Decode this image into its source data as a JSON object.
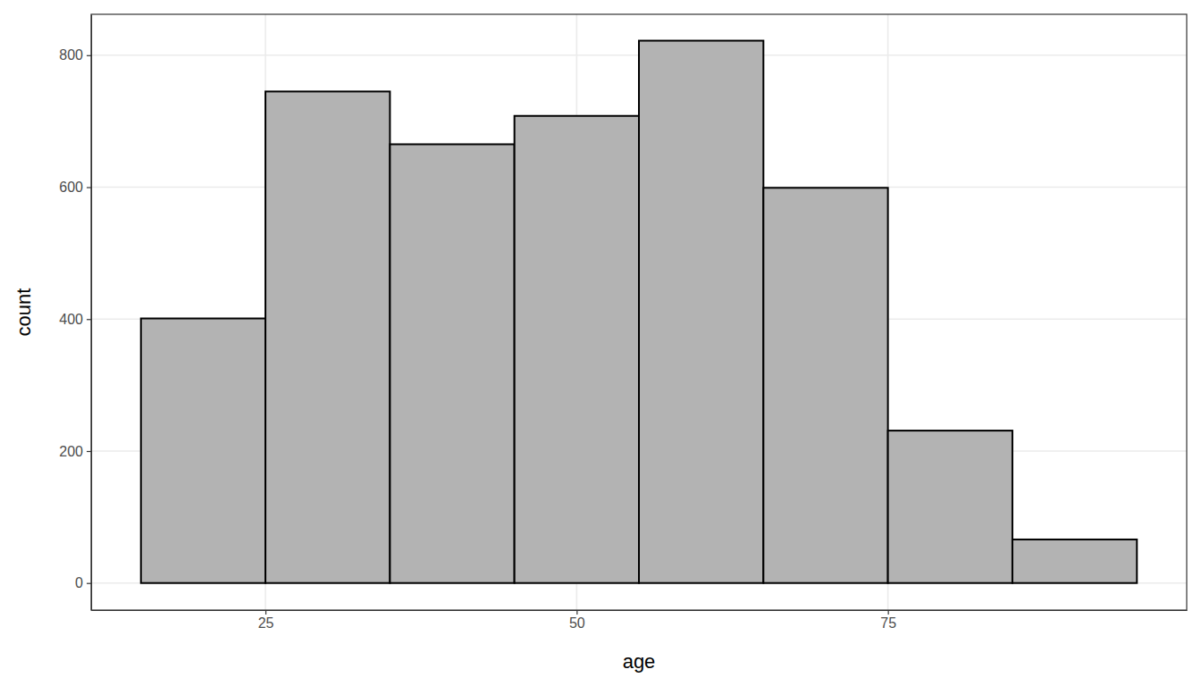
{
  "chart_data": {
    "type": "histogram",
    "x_label": "age",
    "y_label": "count",
    "bins": [
      15,
      25,
      35,
      45,
      55,
      65,
      75,
      85,
      95
    ],
    "values": [
      401,
      745,
      665,
      708,
      822,
      599,
      231,
      66
    ],
    "color": "#b3b3b3",
    "xlim": [
      11,
      99
    ],
    "ylim": [
      -41,
      862
    ],
    "xticks": [
      25,
      50,
      75
    ],
    "yticks": [
      0,
      200,
      400,
      600,
      800
    ],
    "grid": true
  }
}
